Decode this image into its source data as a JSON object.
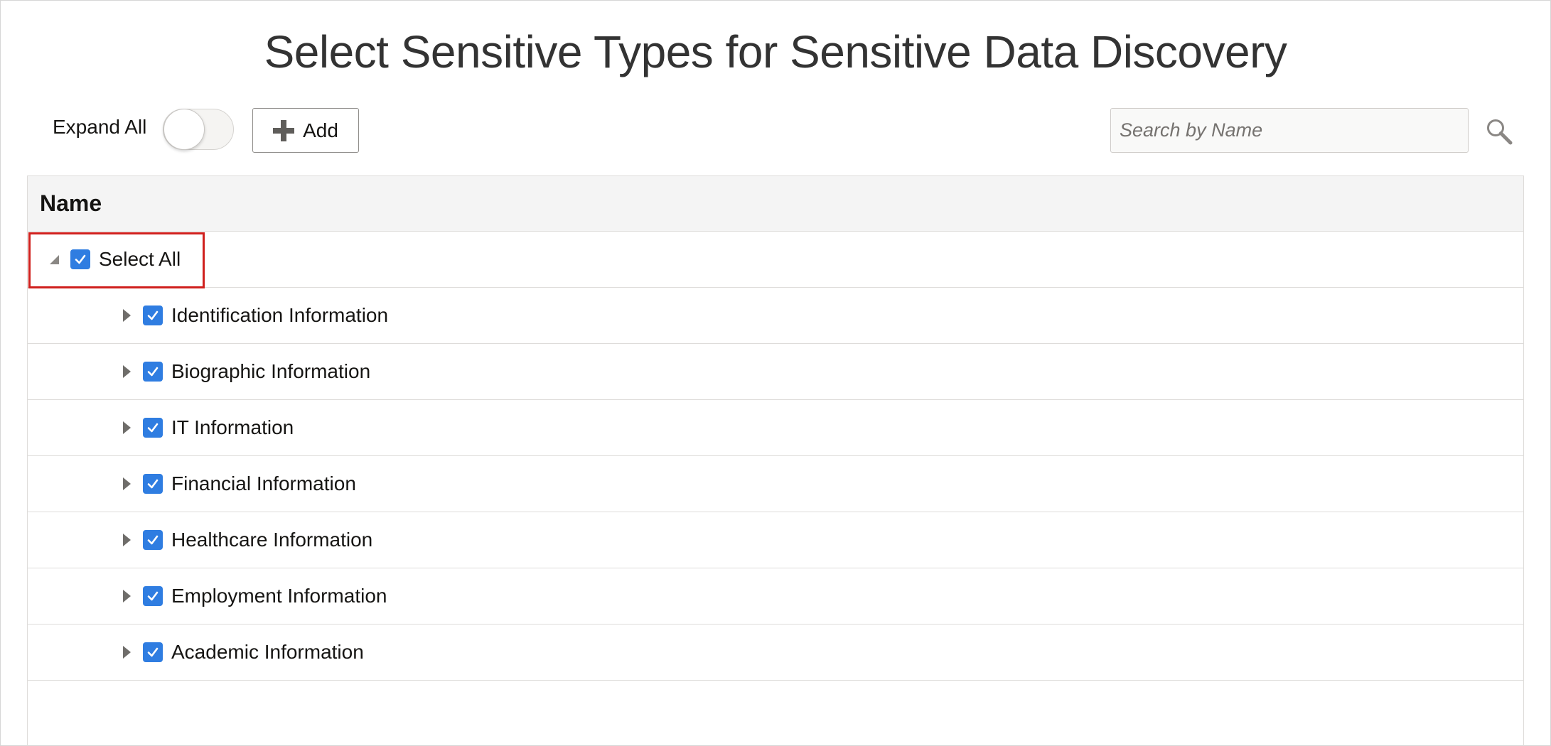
{
  "title": "Select Sensitive Types for Sensitive Data Discovery",
  "toolbar": {
    "expand_all_label": "Expand All",
    "expand_all_on": false,
    "add_label": "Add",
    "search_placeholder": "Search by Name",
    "search_value": ""
  },
  "table": {
    "column_header": "Name",
    "root": {
      "label": "Select All",
      "checked": true,
      "expanded": true
    },
    "items": [
      {
        "label": "Identification Information",
        "checked": true,
        "expanded": false
      },
      {
        "label": "Biographic Information",
        "checked": true,
        "expanded": false
      },
      {
        "label": "IT Information",
        "checked": true,
        "expanded": false
      },
      {
        "label": "Financial Information",
        "checked": true,
        "expanded": false
      },
      {
        "label": "Healthcare Information",
        "checked": true,
        "expanded": false
      },
      {
        "label": "Employment Information",
        "checked": true,
        "expanded": false
      },
      {
        "label": "Academic Information",
        "checked": true,
        "expanded": false
      }
    ]
  },
  "colors": {
    "checkbox_accent": "#2f7de1",
    "highlight": "#d0201d",
    "header_bg": "#f4f4f4"
  },
  "icons": {
    "add": "plus-icon",
    "search": "search-icon",
    "expanded": "triangle-down-icon",
    "collapsed": "triangle-right-icon",
    "checked": "checkmark-icon"
  }
}
